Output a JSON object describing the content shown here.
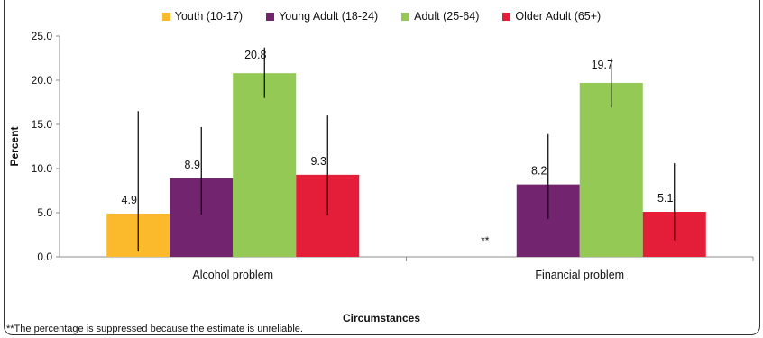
{
  "chart_data": {
    "type": "bar",
    "title": "",
    "xlabel": "Circumstances",
    "ylabel": "Percent",
    "ylim": [
      0,
      25
    ],
    "yticks": [
      "0.0",
      "5.0",
      "10.0",
      "15.0",
      "20.0",
      "25.0"
    ],
    "ytick_values": [
      0,
      5,
      10,
      15,
      20,
      25
    ],
    "grid": false,
    "legend_position": "top",
    "categories": [
      "Alcohol problem",
      "Financial problem"
    ],
    "series": [
      {
        "name": "Youth (10-17)",
        "color": "#FBBA2C",
        "values": [
          4.9,
          null
        ],
        "labels": [
          "4.9",
          "**"
        ],
        "error_low": [
          0.6,
          null
        ],
        "error_high": [
          16.5,
          null
        ]
      },
      {
        "name": "Young Adult (18-24)",
        "color": "#72246E",
        "values": [
          8.9,
          8.2
        ],
        "labels": [
          "8.9",
          "8.2"
        ],
        "error_low": [
          4.8,
          4.3
        ],
        "error_high": [
          14.7,
          13.9
        ]
      },
      {
        "name": "Adult (25-64)",
        "color": "#93C954",
        "values": [
          20.8,
          19.7
        ],
        "labels": [
          "20.8",
          "19.7"
        ],
        "error_low": [
          18.0,
          16.9
        ],
        "error_high": [
          23.7,
          22.5
        ]
      },
      {
        "name": "Older Adult (65+)",
        "color": "#E41E38",
        "values": [
          9.3,
          5.1
        ],
        "labels": [
          "9.3",
          "5.1"
        ],
        "error_low": [
          4.7,
          1.9
        ],
        "error_high": [
          16.0,
          10.6
        ]
      }
    ],
    "footnote": "**The percentage is suppressed because the estimate is unreliable."
  }
}
